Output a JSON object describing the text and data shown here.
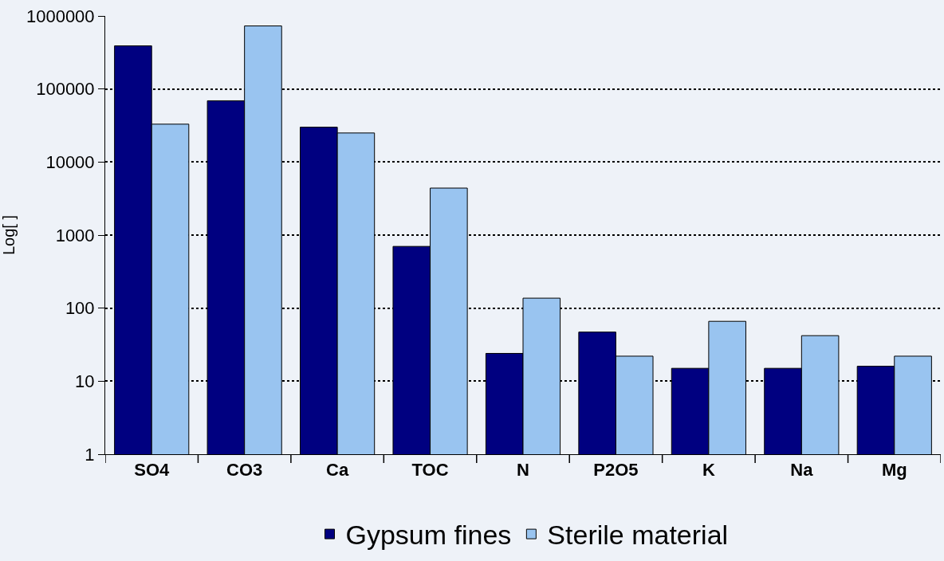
{
  "chart_data": {
    "type": "bar",
    "ylabel": "Log[ ]",
    "log": true,
    "grid": "y",
    "legend": "bottom",
    "categories": [
      "SO4",
      "CO3",
      "Ca",
      "TOC",
      "N",
      "P2O5",
      "K",
      "Na",
      "Mg"
    ],
    "series": [
      {
        "name": "Gypsum fines",
        "color": "#000080",
        "values": [
          390000,
          69000,
          30000,
          700,
          24,
          47,
          15,
          15,
          16
        ]
      },
      {
        "name": "Sterile material",
        "color": "#99c4f0",
        "values": [
          33000,
          730000,
          25000,
          4400,
          137,
          22,
          66,
          42,
          22
        ]
      }
    ],
    "ylim": [
      1,
      1000000
    ],
    "yticks": [
      1,
      10,
      100,
      1000,
      10000,
      100000,
      1000000
    ]
  }
}
